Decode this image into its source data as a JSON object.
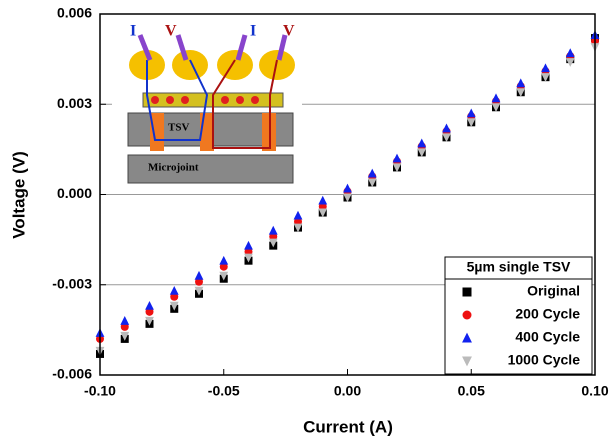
{
  "chart_data": {
    "type": "scatter",
    "x_label": "Current (A)",
    "y_label": "Voltage (V)",
    "legend_title": "5µm single TSV",
    "legend_position": "lower right",
    "grid": true,
    "inset_labels": [
      "I",
      "V",
      "I",
      "V",
      "TSV",
      "Microjoint"
    ],
    "xlim": [
      -0.1,
      0.1
    ],
    "xticks": [
      {
        "value": -0.1,
        "label": "-0.10"
      },
      {
        "value": -0.05,
        "label": "-0.05"
      },
      {
        "value": 0,
        "label": "0.00"
      },
      {
        "value": 0.05,
        "label": "0.05"
      },
      {
        "value": 0.1,
        "label": "0.10"
      }
    ],
    "ylim": [
      -0.006,
      0.006
    ],
    "yticks": [
      -0.006,
      -0.003,
      {
        "value": 0,
        "label": "0.000"
      },
      0.003,
      0.006
    ],
    "x": [
      -0.1,
      -0.09,
      -0.08,
      -0.07,
      -0.06,
      -0.05,
      -0.04,
      -0.03,
      -0.02,
      -0.01,
      0,
      0.01,
      0.02,
      0.03,
      0.04,
      0.05,
      0.06,
      0.07,
      0.08,
      0.09,
      0.1
    ],
    "series": [
      {
        "name": "Original",
        "color": "#000000",
        "marker": "square",
        "values": [
          -0.0053,
          -0.0048,
          -0.0043,
          -0.0038,
          -0.0033,
          -0.0028,
          -0.0022,
          -0.0017,
          -0.0011,
          -0.0006,
          -0.0001,
          0.0004,
          0.0009,
          0.0014,
          0.0019,
          0.0024,
          0.0029,
          0.0034,
          0.0039,
          0.0045,
          0.0052
        ]
      },
      {
        "name": "200 Cycle",
        "color": "#ee1111",
        "marker": "circle",
        "values": [
          -0.0048,
          -0.0044,
          -0.0039,
          -0.0034,
          -0.0029,
          -0.0024,
          -0.0019,
          -0.0014,
          -0.0009,
          -0.0004,
          0.0001,
          0.0006,
          0.0011,
          0.0016,
          0.0021,
          0.0026,
          0.0031,
          0.0036,
          0.0041,
          0.0046,
          0.0051
        ]
      },
      {
        "name": "400 Cycle",
        "color": "#1122ee",
        "marker": "triangle",
        "values": [
          -0.0046,
          -0.0042,
          -0.0037,
          -0.0032,
          -0.0027,
          -0.0022,
          -0.0017,
          -0.0012,
          -0.0007,
          -0.0002,
          0.0002,
          0.0007,
          0.0012,
          0.0017,
          0.0022,
          0.0027,
          0.0032,
          0.0037,
          0.0042,
          0.0047,
          0.0053
        ]
      },
      {
        "name": "1000 Cycle",
        "color": "#bbbbbb",
        "marker": "triangle-down",
        "values": [
          -0.0052,
          -0.0047,
          -0.0042,
          -0.0037,
          -0.0032,
          -0.0027,
          -0.0021,
          -0.0016,
          -0.0011,
          -0.0006,
          -0.0001,
          0.0004,
          0.0009,
          0.0014,
          0.0019,
          0.0024,
          0.0029,
          0.0034,
          0.0039,
          0.0044,
          0.0049
        ]
      }
    ]
  }
}
